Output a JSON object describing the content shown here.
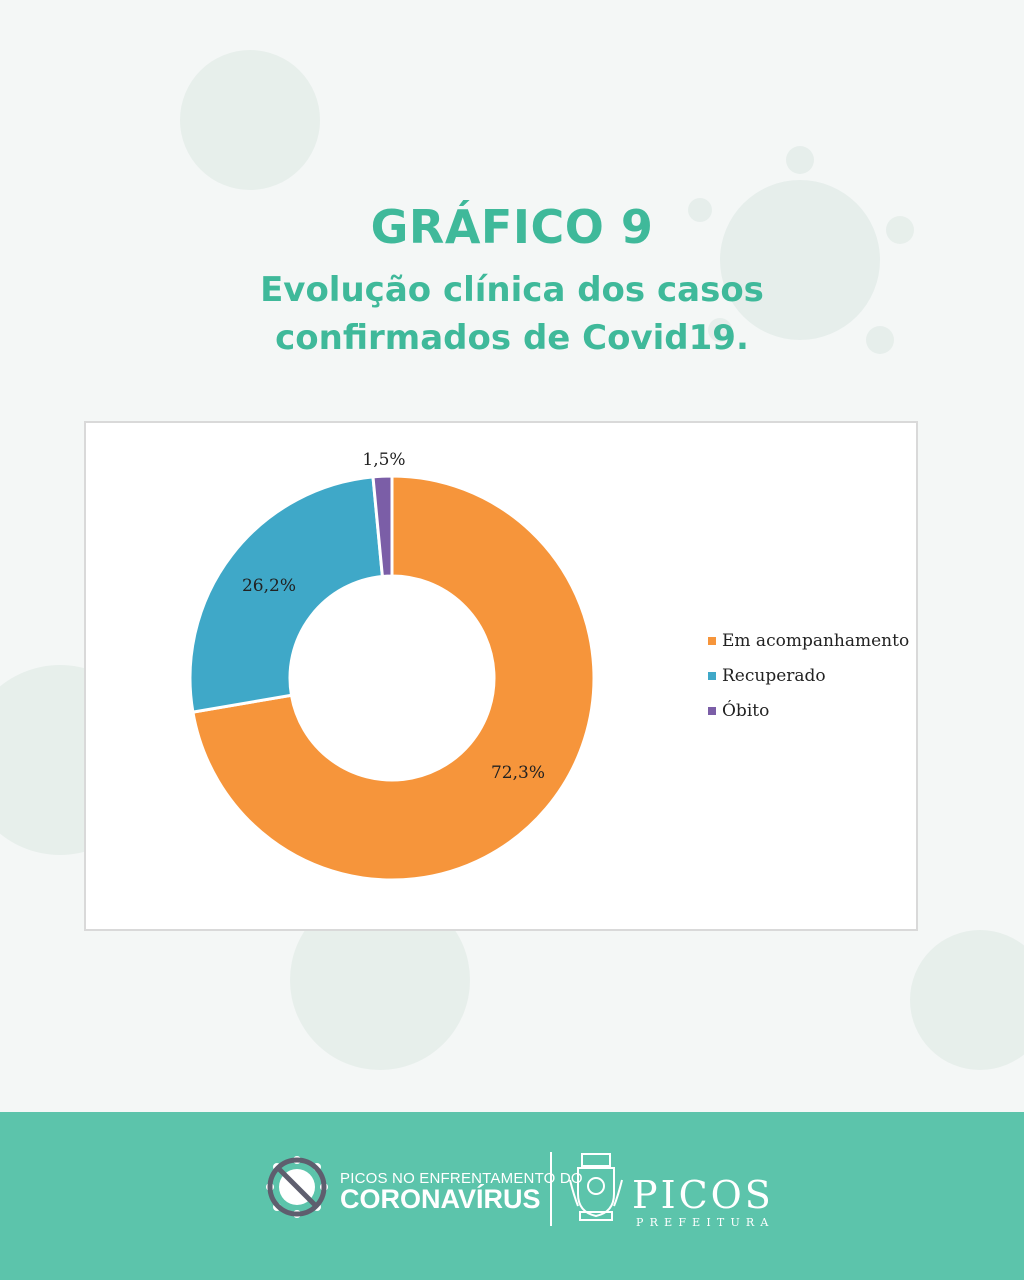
{
  "header": {
    "title": "GRÁFICO 9",
    "subtitle_line1": "Evolução clínica dos casos",
    "subtitle_line2": "confirmados de Covid19."
  },
  "chart_data": {
    "type": "pie",
    "variant": "donut",
    "title": "",
    "series": [
      {
        "name": "Em acompanhamento",
        "value": 72.3,
        "label": "72,3%",
        "color": "#f6953b"
      },
      {
        "name": "Recuperado",
        "value": 26.2,
        "label": "26,2%",
        "color": "#3fa8c8"
      },
      {
        "name": "Óbito",
        "value": 1.5,
        "label": "1,5%",
        "color": "#7b5ea7"
      }
    ],
    "legend_position": "right"
  },
  "footer": {
    "campaign_top": "PICOS NO ENFRENTAMENTO DO",
    "campaign_main": "CORONAVÍRUS",
    "city_name": "PICOS",
    "city_subtitle": "PREFEITURA",
    "campaign_icon": "crossed-virus-icon",
    "crest_icon": "city-crest-icon",
    "background_color": "#5cc4ab"
  }
}
